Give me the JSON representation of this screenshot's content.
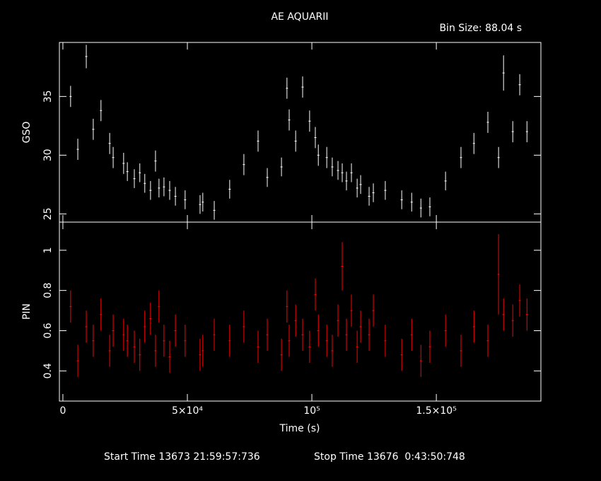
{
  "chart_data": [
    {
      "type": "errorbar",
      "title": "AE AQUARII",
      "subtitle": "Bin Size: 88.04 s",
      "ylabel": "GSO",
      "color": "#ffffff",
      "x": [
        3100,
        6000,
        9400,
        12200,
        15300,
        18800,
        20200,
        24400,
        25900,
        28700,
        30900,
        32900,
        35200,
        37200,
        38600,
        40600,
        42900,
        45200,
        49100,
        55100,
        56200,
        60800,
        67000,
        72700,
        78400,
        82100,
        87800,
        90000,
        90900,
        93500,
        96300,
        99100,
        101400,
        102600,
        106000,
        108200,
        110500,
        112200,
        113900,
        115900,
        118200,
        119600,
        123000,
        124700,
        129500,
        136100,
        140100,
        143800,
        147400,
        153700,
        159900,
        165100,
        170700,
        175000,
        177000,
        180700,
        183500,
        186400
      ],
      "values": [
        35.0,
        30.5,
        38.4,
        32.2,
        33.8,
        31.0,
        29.8,
        29.3,
        28.6,
        28.0,
        28.5,
        27.6,
        27.0,
        29.5,
        27.2,
        27.3,
        27.0,
        26.5,
        26.2,
        25.8,
        26.0,
        25.3,
        27.1,
        29.2,
        31.2,
        28.1,
        29.0,
        35.7,
        33.0,
        31.2,
        35.8,
        32.9,
        31.5,
        30.0,
        29.8,
        29.0,
        28.7,
        28.5,
        27.8,
        28.5,
        27.2,
        27.5,
        26.5,
        26.8,
        27.0,
        26.2,
        26.0,
        25.5,
        25.6,
        27.8,
        29.8,
        31.0,
        32.8,
        29.8,
        37.0,
        32.0,
        36.0,
        32.0
      ],
      "errors": [
        0.9,
        0.9,
        1.0,
        0.9,
        0.9,
        0.9,
        0.9,
        0.9,
        0.8,
        0.8,
        0.8,
        0.8,
        0.8,
        0.9,
        0.8,
        0.8,
        0.8,
        0.8,
        0.8,
        0.8,
        0.8,
        0.8,
        0.8,
        0.9,
        0.9,
        0.8,
        0.8,
        0.9,
        0.9,
        0.9,
        0.9,
        0.9,
        0.9,
        0.9,
        0.9,
        0.8,
        0.8,
        0.8,
        0.8,
        0.8,
        0.8,
        0.8,
        0.8,
        0.8,
        0.8,
        0.8,
        0.8,
        0.8,
        0.8,
        0.8,
        0.9,
        0.9,
        0.9,
        0.9,
        1.5,
        0.9,
        0.9,
        0.9
      ],
      "xlim": [
        -1400,
        192000
      ],
      "ylim": [
        24.3,
        39.6
      ],
      "yticks": [
        25,
        30,
        35
      ]
    },
    {
      "type": "errorbar",
      "ylabel": "PIN",
      "xlabel": "Time (s)",
      "color": "#ff0000",
      "x": [
        3100,
        6000,
        9400,
        12200,
        15300,
        18800,
        20200,
        24400,
        25900,
        28700,
        30900,
        32900,
        35200,
        37200,
        38600,
        40600,
        42900,
        45200,
        49100,
        55100,
        56200,
        60800,
        67000,
        72700,
        78400,
        82100,
        87800,
        90000,
        90900,
        93500,
        96300,
        99100,
        101400,
        102600,
        106000,
        108200,
        110500,
        112200,
        113900,
        115900,
        118200,
        119600,
        123000,
        124700,
        129500,
        136100,
        140100,
        143800,
        147400,
        153700,
        159900,
        165100,
        170700,
        175000,
        177000,
        180700,
        183500,
        186400
      ],
      "values": [
        0.72,
        0.45,
        0.62,
        0.55,
        0.68,
        0.5,
        0.6,
        0.58,
        0.55,
        0.52,
        0.48,
        0.62,
        0.66,
        0.5,
        0.72,
        0.55,
        0.47,
        0.6,
        0.55,
        0.48,
        0.5,
        0.58,
        0.55,
        0.62,
        0.52,
        0.58,
        0.48,
        0.72,
        0.55,
        0.65,
        0.58,
        0.52,
        0.78,
        0.6,
        0.55,
        0.5,
        0.65,
        0.92,
        0.58,
        0.7,
        0.52,
        0.62,
        0.58,
        0.7,
        0.55,
        0.48,
        0.58,
        0.45,
        0.52,
        0.6,
        0.5,
        0.62,
        0.55,
        0.88,
        0.68,
        0.65,
        0.75,
        0.68
      ],
      "errors": [
        0.08,
        0.08,
        0.08,
        0.08,
        0.08,
        0.08,
        0.08,
        0.08,
        0.08,
        0.08,
        0.08,
        0.08,
        0.08,
        0.08,
        0.08,
        0.08,
        0.08,
        0.08,
        0.08,
        0.08,
        0.08,
        0.08,
        0.08,
        0.08,
        0.08,
        0.08,
        0.08,
        0.08,
        0.08,
        0.08,
        0.08,
        0.08,
        0.08,
        0.08,
        0.08,
        0.08,
        0.08,
        0.12,
        0.08,
        0.08,
        0.08,
        0.08,
        0.08,
        0.08,
        0.08,
        0.08,
        0.08,
        0.08,
        0.08,
        0.08,
        0.08,
        0.08,
        0.08,
        0.2,
        0.08,
        0.08,
        0.08,
        0.08
      ],
      "xlim": [
        -1400,
        192000
      ],
      "ylim": [
        0.25,
        1.14
      ],
      "yticks": [
        0.4,
        0.6,
        0.8,
        1
      ],
      "xticks": [
        0,
        {
          "value": 50000,
          "label": "5×10⁴"
        },
        {
          "value": 100000,
          "label": "10⁵"
        },
        {
          "value": 150000,
          "label": "1.5×10⁵"
        }
      ]
    }
  ],
  "footer": {
    "start": "Start Time 13673 21:59:57:736",
    "stop": "Stop Time 13676  0:43:50:748"
  }
}
